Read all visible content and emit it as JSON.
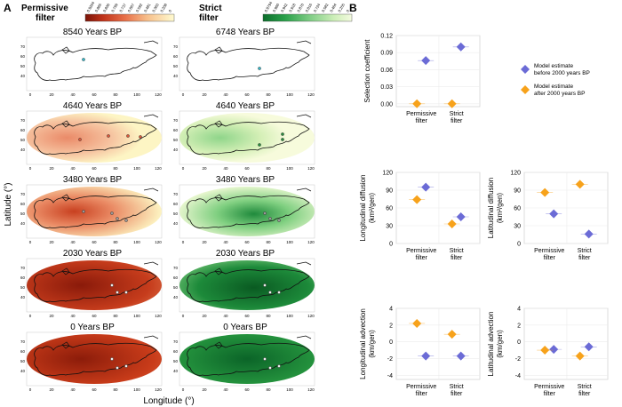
{
  "panel_labels": {
    "a": "A",
    "b": "B"
  },
  "maps": {
    "permissive_legend_title": [
      "Permissive",
      "filter"
    ],
    "strict_legend_title": [
      "Strict",
      "filter"
    ],
    "permissive_legend_ticks": [
      "0.9204",
      "0.865",
      "0.836",
      "0.799",
      "0.737",
      "0.667",
      "0.592",
      "0.481",
      "0.363",
      "0.208",
      "0"
    ],
    "strict_legend_ticks": [
      "0.9794",
      "0.960",
      "0.942",
      "0.918",
      "0.870",
      "0.816",
      "0.724",
      "0.582",
      "0.464",
      "0.255",
      "0"
    ],
    "periods": [
      "8540 Years BP",
      "4640 Years BP",
      "3480 Years BP",
      "2030 Years BP",
      "0 Years BP"
    ],
    "periods_strict": [
      "6748 Years BP",
      "4640 Years BP",
      "3480 Years BP",
      "2030 Years BP",
      "0 Years BP"
    ],
    "x_ticks": [
      "0",
      "20",
      "40",
      "60",
      "80",
      "100",
      "120"
    ],
    "y_ticks": [
      "70",
      "60",
      "50",
      "40"
    ],
    "x_axis_label": "Longitude (°)",
    "y_axis_label": "Latitude (°)",
    "colors": {
      "permissive_dark": "#7a1408",
      "permissive_light": "#fffbd0",
      "strict_dark": "#0c6e2c",
      "strict_light": "#f4fbe0"
    }
  },
  "legend": {
    "before_label": [
      "Model estimate",
      "before 2000 years BP"
    ],
    "after_label": [
      "Model estimate",
      "after 2000 years BP"
    ],
    "before_color": "#6b6bd6",
    "after_color": "#f7a21b"
  },
  "chart_data": [
    {
      "type": "scatter",
      "ylabel": "Selection coefficient",
      "categories": [
        "Permissive filter",
        "Strict filter"
      ],
      "category_lines": [
        [
          "Permissive",
          "filter"
        ],
        [
          "Strict",
          "filter"
        ]
      ],
      "ylim": [
        -0.005,
        0.12
      ],
      "yticks": [
        "0.00",
        "0.03",
        "0.06",
        "0.09",
        "0.12"
      ],
      "series": [
        {
          "name": "Model estimate before 2000 years BP",
          "values": [
            0.076,
            0.1
          ]
        },
        {
          "name": "Model estimate after 2000 years BP",
          "values": [
            0.0,
            0.0
          ]
        }
      ]
    },
    {
      "type": "scatter",
      "ylabel": [
        "Longitudinal diffusion",
        "(km²/gen)"
      ],
      "categories": [
        "Permissive filter",
        "Strict filter"
      ],
      "category_lines": [
        [
          "Permissive",
          "filter"
        ],
        [
          "Strict",
          "filter"
        ]
      ],
      "ylim": [
        0,
        120
      ],
      "yticks": [
        "0",
        "30",
        "60",
        "90",
        "120"
      ],
      "series": [
        {
          "name": "Model estimate before 2000 years BP",
          "values": [
            95,
            45
          ]
        },
        {
          "name": "Model estimate after 2000 years BP",
          "values": [
            74,
            33
          ]
        }
      ]
    },
    {
      "type": "scatter",
      "ylabel": [
        "Latitudinal diffusion",
        "(km²/gen)"
      ],
      "categories": [
        "Permissive filter",
        "Strict filter"
      ],
      "category_lines": [
        [
          "Permissive",
          "filter"
        ],
        [
          "Strict",
          "filter"
        ]
      ],
      "ylim": [
        0,
        120
      ],
      "yticks": [
        "0",
        "30",
        "60",
        "90",
        "120"
      ],
      "series": [
        {
          "name": "Model estimate before 2000 years BP",
          "values": [
            50,
            16
          ]
        },
        {
          "name": "Model estimate after 2000 years BP",
          "values": [
            86,
            100
          ]
        }
      ]
    },
    {
      "type": "scatter",
      "ylabel": [
        "Longitudinal advection",
        "(km/gen)"
      ],
      "categories": [
        "Permissive filter",
        "Strict filter"
      ],
      "category_lines": [
        [
          "Permissive",
          "filter"
        ],
        [
          "Strict",
          "filter"
        ]
      ],
      "ylim": [
        -4.5,
        4
      ],
      "yticks": [
        "-4",
        "-2",
        "0",
        "2",
        "4"
      ],
      "series": [
        {
          "name": "Model estimate before 2000 years BP",
          "values": [
            -1.7,
            -1.7
          ]
        },
        {
          "name": "Model estimate after 2000 years BP",
          "values": [
            2.2,
            0.9
          ]
        }
      ]
    },
    {
      "type": "scatter",
      "ylabel": [
        "Latitudinal advection",
        "(km/gen)"
      ],
      "categories": [
        "Permissive filter",
        "Strict filter"
      ],
      "category_lines": [
        [
          "Permissive",
          "filter"
        ],
        [
          "Strict",
          "filter"
        ]
      ],
      "ylim": [
        -4.5,
        4
      ],
      "yticks": [
        "-4",
        "-2",
        "0",
        "2",
        "4"
      ],
      "series": [
        {
          "name": "Model estimate before 2000 years BP",
          "values": [
            -0.9,
            -0.6
          ]
        },
        {
          "name": "Model estimate after 2000 years BP",
          "values": [
            -1.0,
            -1.7
          ]
        }
      ]
    }
  ]
}
